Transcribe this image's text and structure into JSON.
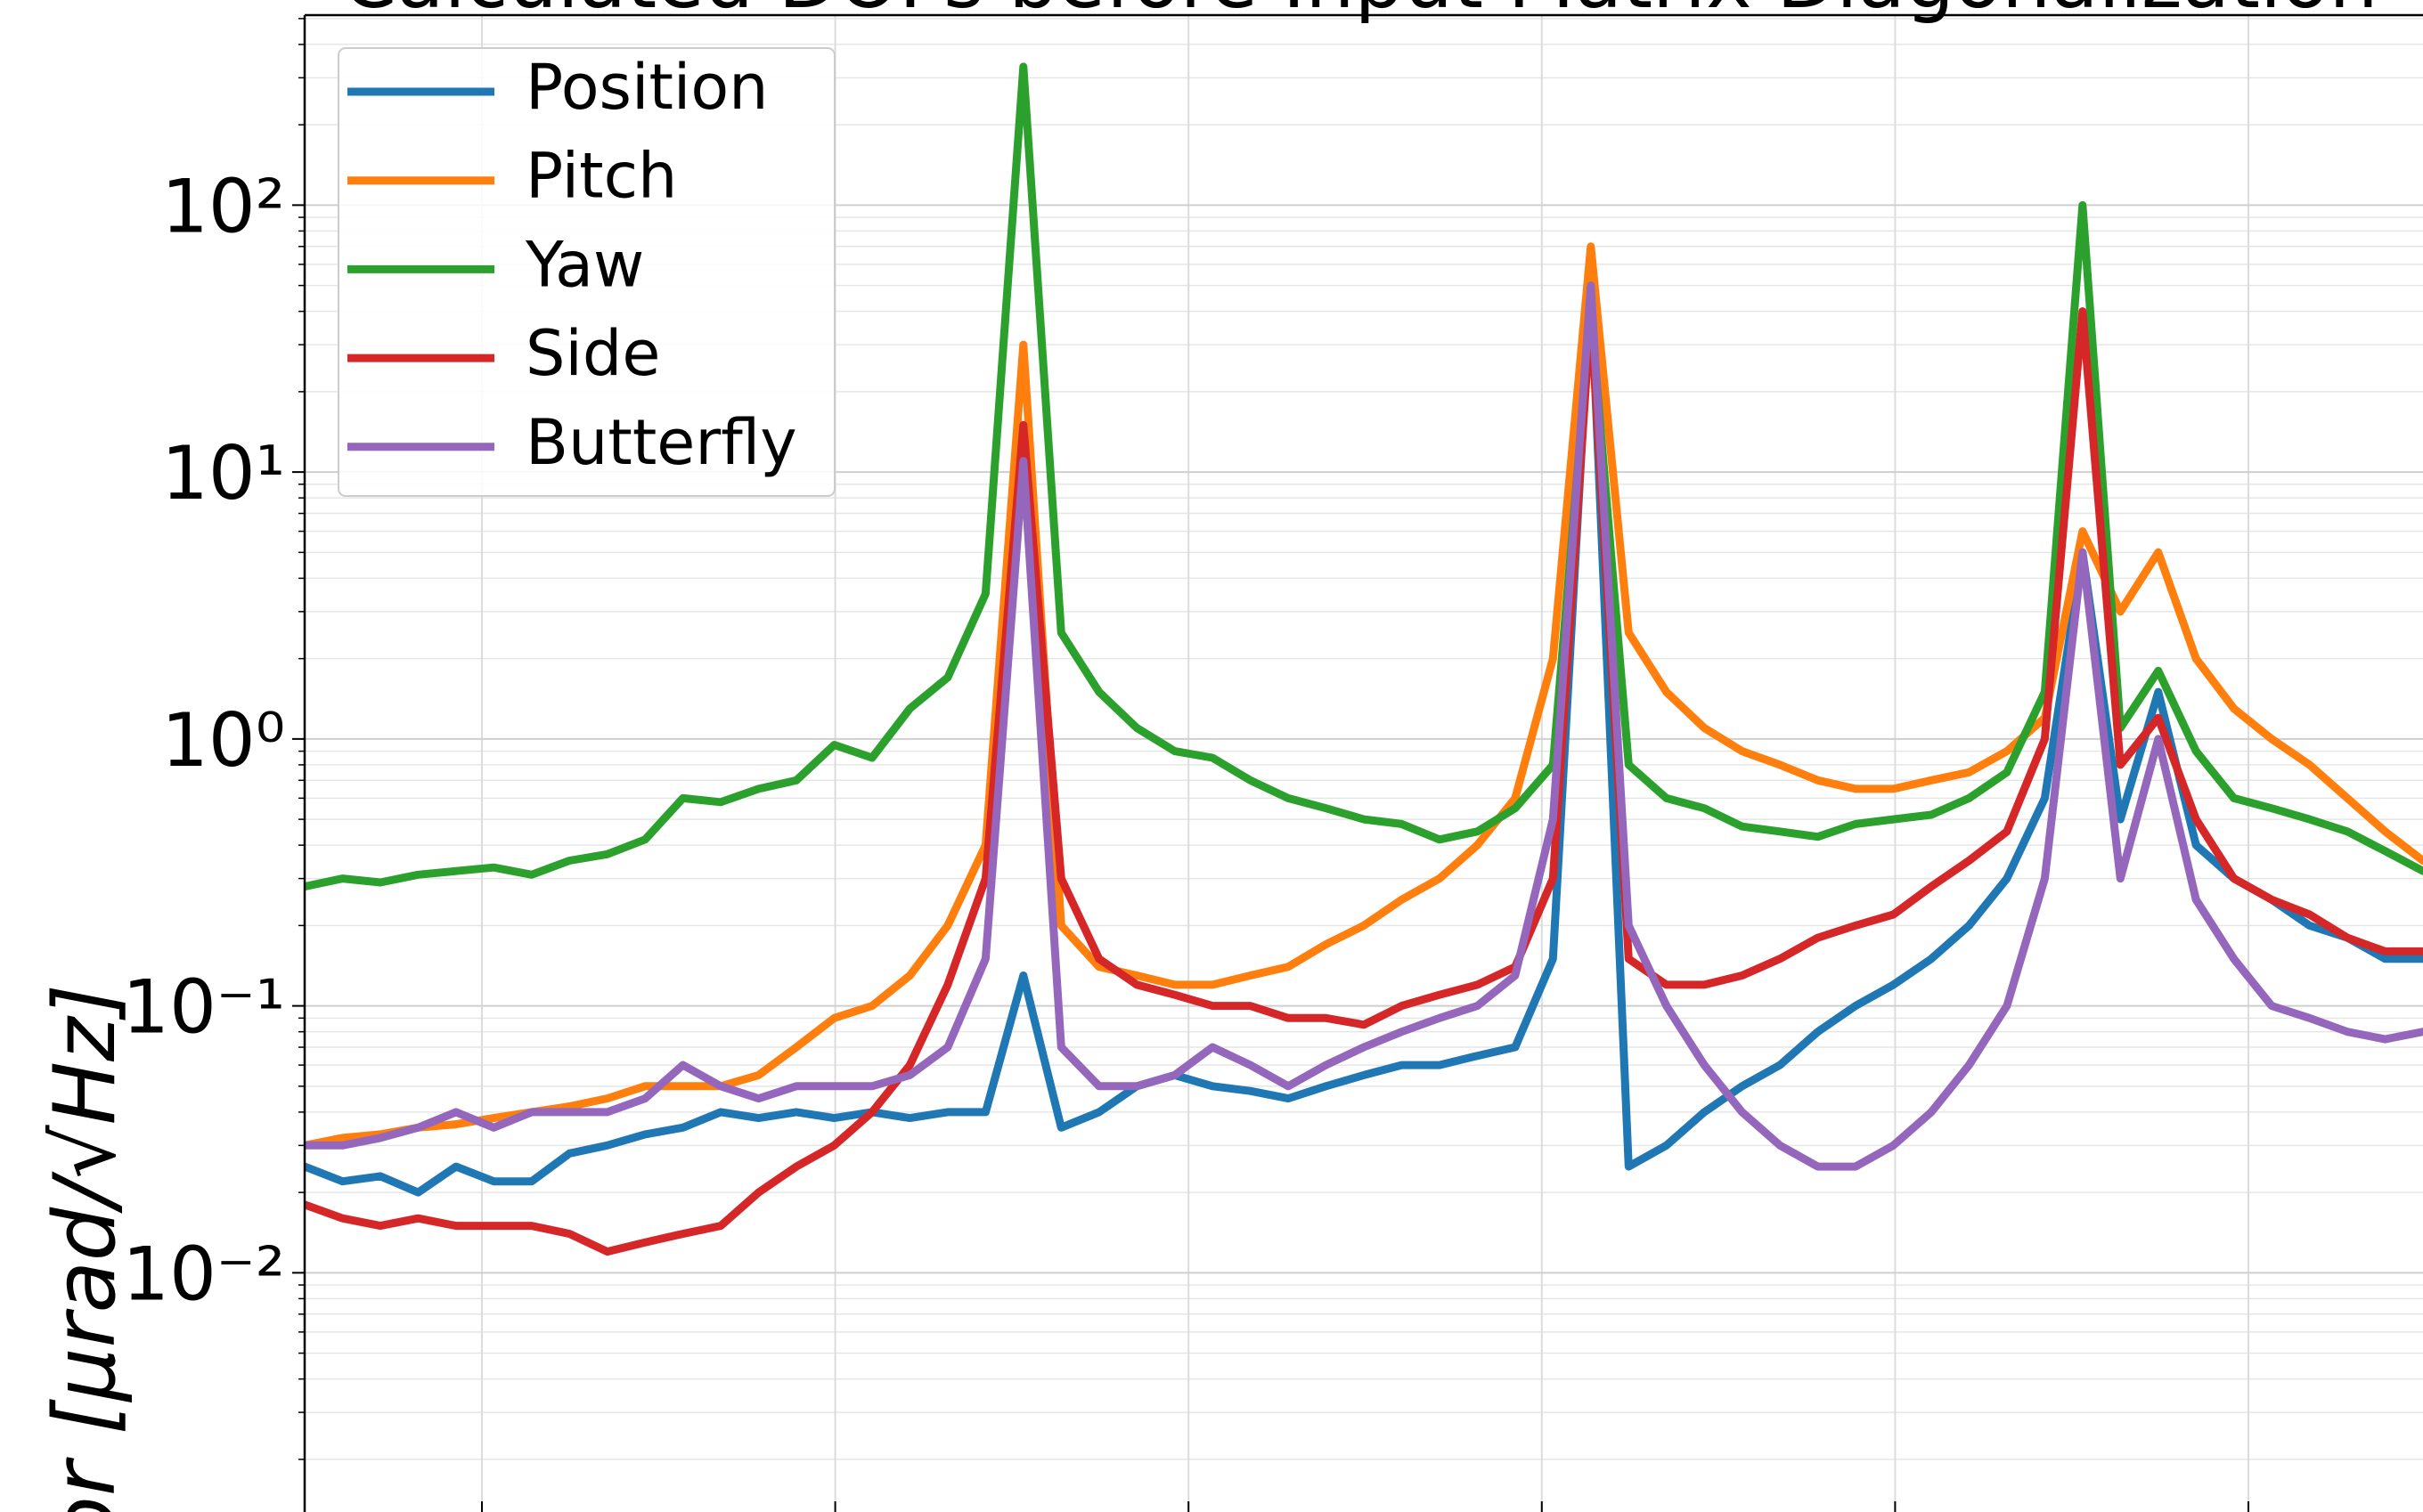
{
  "chart_data": {
    "type": "line",
    "title": "Calculated DOFs before Input Matrix Diagonalization",
    "y_label": "or [μrad/√Hz]",
    "log_y": true,
    "grid": true,
    "legend": "upper left",
    "ylim": [
      0.00127,
      515
    ],
    "yticks": [
      {
        "value": 100,
        "label": "10²"
      },
      {
        "value": 10,
        "label": "10¹"
      },
      {
        "value": 1,
        "label": "10⁰"
      },
      {
        "value": 0.1,
        "label": "10⁻¹"
      },
      {
        "value": 0.01,
        "label": "10⁻²"
      }
    ],
    "series": [
      {
        "name": "Position",
        "color": "#1f77b4",
        "values": [
          0.025,
          0.022,
          0.023,
          0.02,
          0.025,
          0.022,
          0.022,
          0.028,
          0.03,
          0.033,
          0.035,
          0.04,
          0.038,
          0.04,
          0.038,
          0.04,
          0.038,
          0.04,
          0.04,
          0.13,
          0.035,
          0.04,
          0.05,
          0.055,
          0.05,
          0.048,
          0.045,
          0.05,
          0.055,
          0.06,
          0.06,
          0.065,
          0.07,
          0.15,
          50,
          0.025,
          0.03,
          0.04,
          0.05,
          0.06,
          0.08,
          0.1,
          0.12,
          0.15,
          0.2,
          0.3,
          0.6,
          5,
          0.5,
          1.5,
          0.4,
          0.3,
          0.25,
          0.2,
          0.18,
          0.15,
          0.15
        ]
      },
      {
        "name": "Pitch",
        "color": "#ff7f0e",
        "values": [
          0.03,
          0.032,
          0.033,
          0.035,
          0.036,
          0.038,
          0.04,
          0.042,
          0.045,
          0.05,
          0.05,
          0.05,
          0.055,
          0.07,
          0.09,
          0.1,
          0.13,
          0.2,
          0.4,
          30,
          0.2,
          0.14,
          0.13,
          0.12,
          0.12,
          0.13,
          0.14,
          0.17,
          0.2,
          0.25,
          0.3,
          0.4,
          0.6,
          2,
          70,
          2.5,
          1.5,
          1.1,
          0.9,
          0.8,
          0.7,
          0.65,
          0.65,
          0.7,
          0.75,
          0.9,
          1.2,
          6,
          3,
          5,
          2,
          1.3,
          1,
          0.8,
          0.6,
          0.45,
          0.35
        ]
      },
      {
        "name": "Yaw",
        "color": "#2ca02c",
        "values": [
          0.28,
          0.3,
          0.29,
          0.31,
          0.32,
          0.33,
          0.31,
          0.35,
          0.37,
          0.42,
          0.6,
          0.58,
          0.65,
          0.7,
          0.95,
          0.85,
          1.3,
          1.7,
          3.5,
          330,
          2.5,
          1.5,
          1.1,
          0.9,
          0.85,
          0.7,
          0.6,
          0.55,
          0.5,
          0.48,
          0.42,
          0.45,
          0.55,
          0.8,
          40,
          0.8,
          0.6,
          0.55,
          0.47,
          0.45,
          0.43,
          0.48,
          0.5,
          0.52,
          0.6,
          0.75,
          1.5,
          100,
          1.1,
          1.8,
          0.9,
          0.6,
          0.55,
          0.5,
          0.45,
          0.38,
          0.32
        ]
      },
      {
        "name": "Side",
        "color": "#d62728",
        "values": [
          0.018,
          0.016,
          0.015,
          0.016,
          0.015,
          0.015,
          0.015,
          0.014,
          0.012,
          0.013,
          0.014,
          0.015,
          0.02,
          0.025,
          0.03,
          0.04,
          0.06,
          0.12,
          0.3,
          15,
          0.3,
          0.15,
          0.12,
          0.11,
          0.1,
          0.1,
          0.09,
          0.09,
          0.085,
          0.1,
          0.11,
          0.12,
          0.14,
          0.3,
          40,
          0.15,
          0.12,
          0.12,
          0.13,
          0.15,
          0.18,
          0.2,
          0.22,
          0.28,
          0.35,
          0.45,
          1,
          40,
          0.8,
          1.2,
          0.5,
          0.3,
          0.25,
          0.22,
          0.18,
          0.16,
          0.16
        ]
      },
      {
        "name": "Butterfly",
        "color": "#9467bd",
        "values": [
          0.03,
          0.03,
          0.032,
          0.035,
          0.04,
          0.035,
          0.04,
          0.04,
          0.04,
          0.045,
          0.06,
          0.05,
          0.045,
          0.05,
          0.05,
          0.05,
          0.055,
          0.07,
          0.15,
          11,
          0.07,
          0.05,
          0.05,
          0.055,
          0.07,
          0.06,
          0.05,
          0.06,
          0.07,
          0.08,
          0.09,
          0.1,
          0.13,
          0.5,
          50,
          0.2,
          0.1,
          0.06,
          0.04,
          0.03,
          0.025,
          0.025,
          0.03,
          0.04,
          0.06,
          0.1,
          0.3,
          5,
          0.3,
          1,
          0.25,
          0.15,
          0.1,
          0.09,
          0.08,
          0.075,
          0.08
        ]
      }
    ]
  }
}
